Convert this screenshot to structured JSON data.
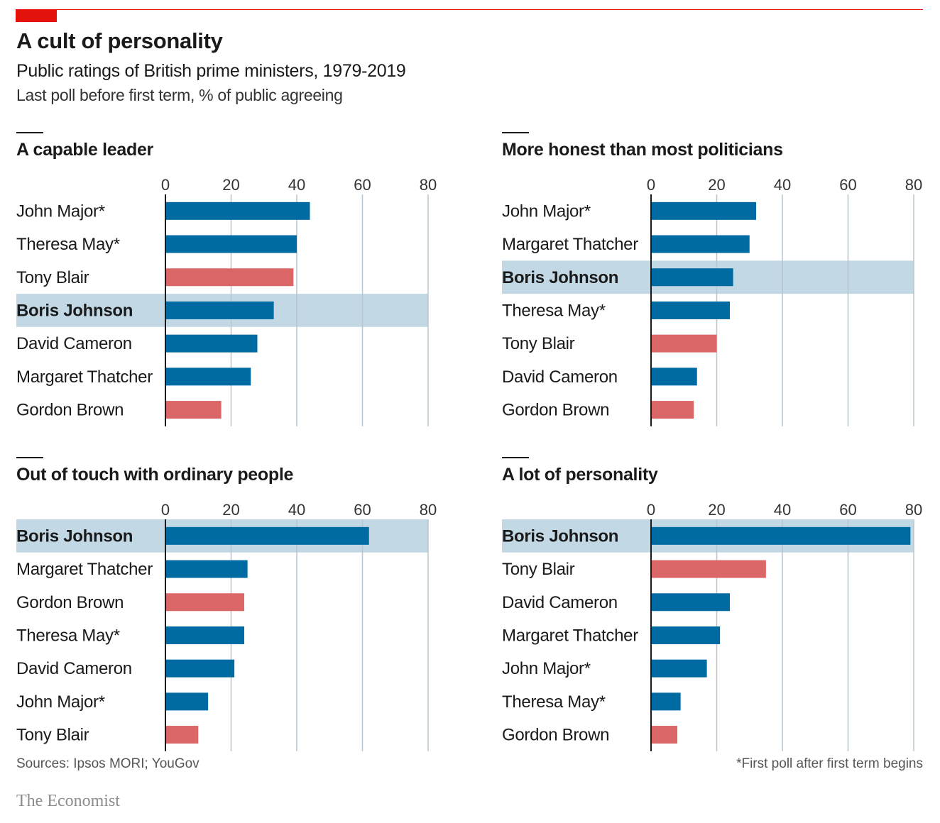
{
  "header": {
    "title": "A cult of personality",
    "subtitle": "Public ratings of British prime ministers, 1979-2019",
    "description": "Last poll before first term, % of public agreeing"
  },
  "footer": {
    "source": "Sources: Ipsos MORI; YouGov",
    "footnote": "*First poll after first term begins",
    "brand": "The Economist"
  },
  "colors": {
    "conservative": "#006ba2",
    "labour": "#db6668",
    "highlight": "#c2d9e5",
    "gridline": "#b7c6cf",
    "accent": "#e3120b"
  },
  "chart_data": [
    {
      "type": "bar",
      "orientation": "horizontal",
      "title": "A capable leader",
      "xlim": [
        0,
        80
      ],
      "xticks": [
        0,
        20,
        40,
        60,
        80
      ],
      "highlight": "Boris Johnson",
      "categories": [
        "John Major*",
        "Theresa May*",
        "Tony Blair",
        "Boris Johnson",
        "David Cameron",
        "Margaret Thatcher",
        "Gordon Brown"
      ],
      "values": [
        44,
        40,
        39,
        33,
        28,
        26,
        17
      ],
      "party": [
        "conservative",
        "conservative",
        "labour",
        "conservative",
        "conservative",
        "conservative",
        "labour"
      ]
    },
    {
      "type": "bar",
      "orientation": "horizontal",
      "title": "More honest than most politicians",
      "xlim": [
        0,
        80
      ],
      "xticks": [
        0,
        20,
        40,
        60,
        80
      ],
      "highlight": "Boris Johnson",
      "categories": [
        "John Major*",
        "Margaret Thatcher",
        "Boris Johnson",
        "Theresa May*",
        "Tony Blair",
        "David Cameron",
        "Gordon Brown"
      ],
      "values": [
        32,
        30,
        25,
        24,
        20,
        14,
        13
      ],
      "party": [
        "conservative",
        "conservative",
        "conservative",
        "conservative",
        "labour",
        "conservative",
        "labour"
      ]
    },
    {
      "type": "bar",
      "orientation": "horizontal",
      "title": "Out of touch with ordinary people",
      "xlim": [
        0,
        80
      ],
      "xticks": [
        0,
        20,
        40,
        60,
        80
      ],
      "highlight": "Boris Johnson",
      "categories": [
        "Boris Johnson",
        "Margaret Thatcher",
        "Gordon Brown",
        "Theresa May*",
        "David Cameron",
        "John Major*",
        "Tony Blair"
      ],
      "values": [
        62,
        25,
        24,
        24,
        21,
        13,
        10
      ],
      "party": [
        "conservative",
        "conservative",
        "labour",
        "conservative",
        "conservative",
        "conservative",
        "labour"
      ]
    },
    {
      "type": "bar",
      "orientation": "horizontal",
      "title": "A lot of personality",
      "xlim": [
        0,
        80
      ],
      "xticks": [
        0,
        20,
        40,
        60,
        80
      ],
      "highlight": "Boris Johnson",
      "categories": [
        "Boris Johnson",
        "Tony Blair",
        "David Cameron",
        "Margaret Thatcher",
        "John Major*",
        "Theresa May*",
        "Gordon Brown"
      ],
      "values": [
        79,
        35,
        24,
        21,
        17,
        9,
        8
      ],
      "party": [
        "conservative",
        "labour",
        "conservative",
        "conservative",
        "conservative",
        "conservative",
        "labour"
      ]
    }
  ]
}
